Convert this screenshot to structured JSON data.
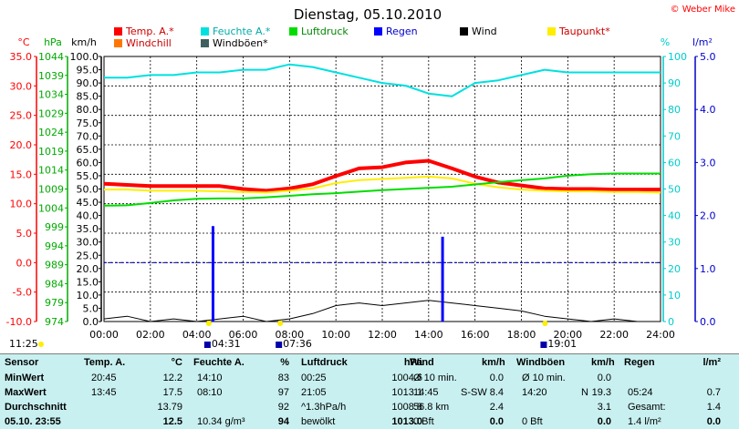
{
  "title": "Dienstag, 05.10.2010",
  "credit": "© Weber Mike",
  "legend": [
    {
      "label": "Temp. A.*",
      "color": "#ff0000"
    },
    {
      "label": "Feuchte A.*",
      "color": "#00e0e0"
    },
    {
      "label": "Luftdruck",
      "color": "#00dd00"
    },
    {
      "label": "Regen",
      "color": "#0000ff"
    },
    {
      "label": "Wind",
      "color": "#000000"
    },
    {
      "label": "Taupunkt*",
      "color": "#ffee00"
    },
    {
      "label": "Windchill",
      "color": "#ff7700"
    },
    {
      "label": "Windböen*",
      "color": "#406060"
    }
  ],
  "axis_units": {
    "temp": "°C",
    "pressure": "hPa",
    "wind": "km/h",
    "humidity": "%",
    "rain": "l/m²"
  },
  "chart_data": {
    "type": "line",
    "x_unit": "time (hh:mm)",
    "x_range": [
      0,
      24
    ],
    "x_ticks": [
      "00:00",
      "02:00",
      "04:00",
      "06:00",
      "08:00",
      "10:00",
      "12:00",
      "14:00",
      "16:00",
      "18:00",
      "20:00",
      "22:00",
      "24:00"
    ],
    "axes": {
      "temp": {
        "min": -10,
        "max": 35,
        "ticks": [
          "35.0",
          "30.0",
          "25.0",
          "20.0",
          "15.0",
          "10.0",
          "5.0",
          "0.0",
          "-5.0",
          "-10.0"
        ]
      },
      "pressure": {
        "min": 974,
        "max": 1044,
        "ticks": [
          "1044",
          "1039",
          "1034",
          "1029",
          "1024",
          "1019",
          "1014",
          "1009",
          "1004",
          "999",
          "994",
          "989",
          "984",
          "979",
          "974"
        ]
      },
      "wind": {
        "min": 0,
        "max": 100,
        "ticks": [
          "100.0",
          "95.0",
          "90.0",
          "85.0",
          "80.0",
          "75.0",
          "70.0",
          "65.0",
          "60.0",
          "55.0",
          "50.0",
          "45.0",
          "40.0",
          "35.0",
          "30.0",
          "25.0",
          "20.0",
          "15.0",
          "10.0",
          "5.0",
          "0.0"
        ]
      },
      "humidity": {
        "min": 0,
        "max": 100,
        "ticks": [
          "100",
          "90",
          "80",
          "70",
          "60",
          "50",
          "40",
          "30",
          "20",
          "10",
          "0"
        ]
      },
      "rain": {
        "min": 0,
        "max": 5,
        "ticks": [
          "5.0",
          "4.0",
          "3.0",
          "2.0",
          "1.0",
          "0.0"
        ]
      }
    },
    "series": [
      {
        "name": "Temp. A.*",
        "axis": "temp",
        "color": "#ff0000",
        "width": 4,
        "x": [
          0,
          1,
          2,
          3,
          4,
          5,
          6,
          7,
          8,
          9,
          10,
          11,
          12,
          13,
          14,
          15,
          16,
          17,
          18,
          19,
          20,
          21,
          22,
          23,
          24
        ],
        "y": [
          13.4,
          13.2,
          13,
          13,
          13,
          13,
          12.5,
          12.2,
          12.6,
          13.3,
          14.7,
          16,
          16.2,
          17,
          17.3,
          16,
          14.6,
          13.6,
          13.1,
          12.6,
          12.5,
          12.5,
          12.4,
          12.4,
          12.4
        ]
      },
      {
        "name": "Taupunkt*",
        "axis": "temp",
        "color": "#ffee00",
        "width": 2,
        "x": [
          0,
          1,
          2,
          3,
          4,
          5,
          6,
          7,
          8,
          9,
          10,
          11,
          12,
          13,
          14,
          15,
          16,
          17,
          18,
          19,
          20,
          21,
          22,
          23,
          24
        ],
        "y": [
          12.4,
          12.4,
          12.2,
          12.2,
          12.2,
          12.1,
          12.0,
          11.9,
          12.2,
          12.6,
          13.5,
          14,
          14.2,
          14.4,
          14.6,
          14.3,
          13.4,
          12.8,
          12.4,
          12.2,
          12.1,
          12.1,
          12.0,
          12.0,
          11.9
        ]
      },
      {
        "name": "Feuchte A.*",
        "axis": "humidity",
        "color": "#00e0e0",
        "width": 2,
        "x": [
          0,
          1,
          2,
          3,
          4,
          5,
          6,
          7,
          8,
          9,
          10,
          11,
          12,
          13,
          14,
          15,
          16,
          17,
          18,
          19,
          20,
          21,
          22,
          23,
          24
        ],
        "y": [
          92,
          92,
          93,
          93,
          94,
          94,
          95,
          95,
          97,
          96,
          94,
          92,
          90,
          89,
          86,
          85,
          90,
          91,
          93,
          95,
          94,
          94,
          94,
          94,
          94
        ]
      },
      {
        "name": "Luftdruck",
        "axis": "pressure",
        "color": "#00dd00",
        "width": 2,
        "x": [
          0,
          1,
          2,
          3,
          4,
          5,
          6,
          7,
          8,
          9,
          10,
          11,
          12,
          13,
          14,
          15,
          16,
          17,
          18,
          19,
          20,
          21,
          22,
          23,
          24
        ],
        "y": [
          1004.6,
          1004.7,
          1005.3,
          1006,
          1006.4,
          1006.5,
          1006.5,
          1006.8,
          1007.2,
          1007.6,
          1007.9,
          1008.3,
          1008.7,
          1009,
          1009.3,
          1009.6,
          1010.2,
          1010.8,
          1011.3,
          1011.8,
          1012.5,
          1012.9,
          1013.1,
          1013.1,
          1013.1
        ]
      },
      {
        "name": "Wind",
        "axis": "wind",
        "color": "#000000",
        "width": 1,
        "x": [
          0,
          1,
          2,
          3,
          4,
          5,
          6,
          7,
          8,
          9,
          10,
          11,
          12,
          13,
          14,
          15,
          16,
          17,
          18,
          19,
          20,
          21,
          22,
          23,
          24
        ],
        "y": [
          1,
          2,
          0,
          1,
          0,
          1,
          2,
          0,
          1,
          3,
          6,
          7,
          6,
          7,
          8,
          7,
          6,
          5,
          4,
          2,
          1,
          0,
          1,
          0,
          0
        ]
      }
    ],
    "rain_bars": [
      {
        "x": 4.7,
        "height": 1.8
      },
      {
        "x": 14.6,
        "height": 1.6
      }
    ],
    "time_markers": [
      {
        "label": "11:25",
        "x": 0
      },
      {
        "label": "04:31",
        "x": 4.52
      },
      {
        "label": "07:36",
        "x": 7.6
      },
      {
        "label": "19:01",
        "x": 19.02
      }
    ],
    "reference_line": {
      "axis": "temp",
      "value": 0
    }
  },
  "stats": {
    "col_headers": [
      "Sensor",
      "Temp. A.",
      "°C",
      "Feuchte A.",
      "%",
      "Luftdruck",
      "hPa",
      "Wind",
      "km/h",
      "Windböen",
      "km/h",
      "Regen",
      "l/m²"
    ],
    "rows": [
      {
        "label": "MinWert",
        "temp_time": "20:45",
        "temp": "12.2",
        "hum_time": "14:10",
        "hum": "83",
        "pres_time": "00:25",
        "pres": "1004.6",
        "wind_desc": "Ø 10 min.",
        "wind": "0.0",
        "gust_desc": "Ø 10 min.",
        "gust": "0.0",
        "rain_desc": "",
        "rain": ""
      },
      {
        "label": "MaxWert",
        "temp_time": "13:45",
        "temp": "17.5",
        "hum_time": "08:10",
        "hum": "97",
        "pres_time": "21:05",
        "pres": "1013.1",
        "wind_desc": "14:45",
        "wind_dir": "S-SW",
        "wind": "8.4",
        "gust_desc": "14:20",
        "gust_dir": "N",
        "gust": "19.3",
        "rain_desc": "05:24",
        "rain": "0.7"
      },
      {
        "label": "Durchschnitt",
        "temp_time": "",
        "temp": "13.79",
        "hum_time": "",
        "hum": "92",
        "pres_time": "^1.3hPa/h",
        "pres": "1008.8",
        "wind_desc": "56.8 km",
        "wind": "2.4",
        "gust_desc": "",
        "gust": "3.1",
        "rain_desc": "Gesamt:",
        "rain": "1.4"
      },
      {
        "label": "05.10. 23:55",
        "temp_time": "",
        "temp": "12.5",
        "hum_time": "10.34 g/m³",
        "hum": "94",
        "pres_time": "bewölkt",
        "pres": "1013.0",
        "wind_desc": "0 Bft",
        "wind": "0.0",
        "gust_desc": "0 Bft",
        "gust": "0.0",
        "rain_desc": "1.4 l/m²",
        "rain": "0.0"
      }
    ]
  }
}
